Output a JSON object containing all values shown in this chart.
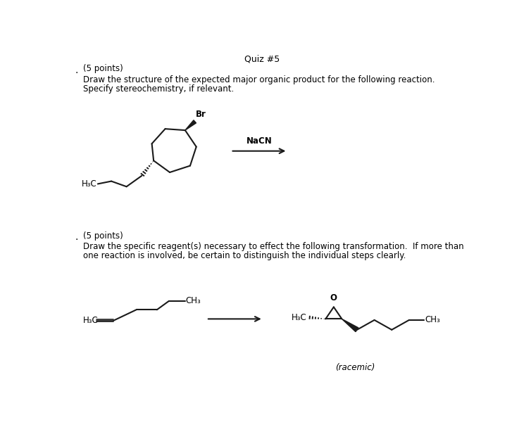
{
  "title": "Quiz #5",
  "q1_points": "(5 points)",
  "q1_line1": "Draw the structure of the expected major organic product for the following reaction.",
  "q1_line2": "Specify stereochemistry, if relevant.",
  "q2_points": "(5 points)",
  "q2_line1": "Draw the specific reagent(s) necessary to effect the following transformation.  If more than",
  "q2_line2": "one reaction is involved, be certain to distinguish the individual steps clearly.",
  "nacn_label": "NaCN",
  "br_label": "Br",
  "h3c_label": "H₃C",
  "o_label": "O",
  "ch3_label": "CH₃",
  "racemic_label": "(racemic)",
  "bg_color": "#ffffff",
  "text_color": "#000000",
  "line_color": "#1a1a1a",
  "font_size_text": 8.5,
  "font_size_mol": 8.5,
  "font_size_title": 9.0
}
